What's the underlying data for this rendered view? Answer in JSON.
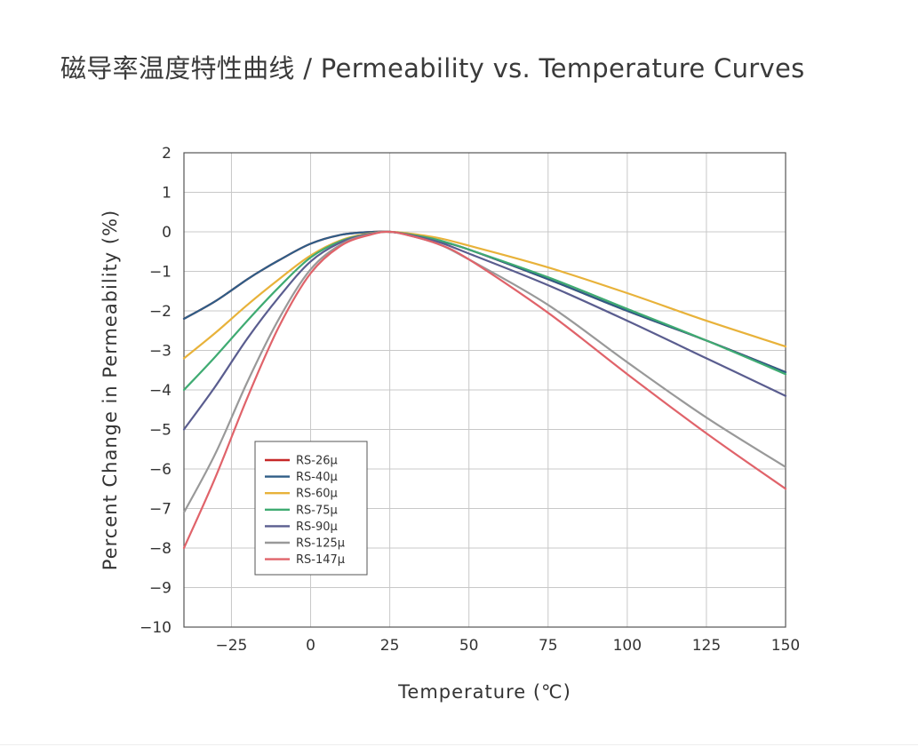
{
  "page": {
    "title": "磁导率温度特性曲线 / Permeability vs. Temperature Curves"
  },
  "chart_data": {
    "type": "line",
    "title": "磁导率温度特性曲线 / Permeability vs. Temperature Curves",
    "xlabel": "Temperature (℃)",
    "ylabel": "Percent Change in Permeability (%)",
    "xlim": [
      -40,
      150
    ],
    "ylim": [
      -10,
      2
    ],
    "xticks": [
      -25,
      0,
      25,
      50,
      75,
      100,
      125,
      150
    ],
    "yticks": [
      2,
      1,
      0,
      -1,
      -2,
      -3,
      -4,
      -5,
      -6,
      -7,
      -8,
      -9,
      -10
    ],
    "xtick_labels": [
      "−25",
      "0",
      "25",
      "50",
      "75",
      "100",
      "125",
      "150"
    ],
    "ytick_labels": [
      "2",
      "1",
      "0",
      "−1",
      "−2",
      "−3",
      "−4",
      "−5",
      "−6",
      "−7",
      "−8",
      "−9",
      "−10"
    ],
    "grid": true,
    "legend_position": "inside-lower-left",
    "series": [
      {
        "name": "RS-26μ",
        "color": "#c62828",
        "x": [
          -40,
          -30,
          -20,
          -15,
          -10,
          0,
          10,
          20,
          25,
          30,
          40,
          50,
          75,
          100,
          125,
          150
        ],
        "y": [
          -2.2,
          -1.75,
          -1.2,
          -0.95,
          -0.72,
          -0.3,
          -0.07,
          0,
          0,
          -0.05,
          -0.22,
          -0.45,
          -1.2,
          -2.0,
          -2.75,
          -3.55
        ]
      },
      {
        "name": "RS-40μ",
        "color": "#2f5d86",
        "x": [
          -40,
          -30,
          -20,
          -15,
          -10,
          0,
          10,
          20,
          25,
          30,
          40,
          50,
          75,
          100,
          125,
          150
        ],
        "y": [
          -2.2,
          -1.75,
          -1.2,
          -0.95,
          -0.72,
          -0.3,
          -0.07,
          0,
          0,
          -0.05,
          -0.22,
          -0.45,
          -1.2,
          -2.0,
          -2.75,
          -3.55
        ]
      },
      {
        "name": "RS-60μ",
        "color": "#e8b23a",
        "x": [
          -40,
          -30,
          -20,
          -10,
          0,
          10,
          20,
          25,
          30,
          40,
          50,
          75,
          100,
          125,
          150
        ],
        "y": [
          -3.2,
          -2.55,
          -1.85,
          -1.2,
          -0.6,
          -0.2,
          -0.02,
          0,
          -0.03,
          -0.15,
          -0.35,
          -0.9,
          -1.55,
          -2.25,
          -2.9
        ]
      },
      {
        "name": "RS-75μ",
        "color": "#3fab72",
        "x": [
          -40,
          -30,
          -20,
          -10,
          0,
          10,
          20,
          25,
          30,
          40,
          50,
          75,
          100,
          125,
          150
        ],
        "y": [
          -4.0,
          -3.15,
          -2.25,
          -1.4,
          -0.65,
          -0.22,
          -0.03,
          0,
          -0.05,
          -0.2,
          -0.45,
          -1.15,
          -1.95,
          -2.75,
          -3.6
        ]
      },
      {
        "name": "RS-90μ",
        "color": "#5a5d8f",
        "x": [
          -40,
          -30,
          -20,
          -10,
          0,
          10,
          20,
          25,
          30,
          40,
          50,
          75,
          100,
          125,
          150
        ],
        "y": [
          -5.0,
          -3.9,
          -2.7,
          -1.65,
          -0.75,
          -0.25,
          -0.03,
          0,
          -0.06,
          -0.25,
          -0.55,
          -1.35,
          -2.25,
          -3.2,
          -4.15
        ]
      },
      {
        "name": "RS-125μ",
        "color": "#999999",
        "x": [
          -40,
          -30,
          -20,
          -10,
          0,
          10,
          20,
          25,
          30,
          40,
          50,
          75,
          100,
          125,
          150
        ],
        "y": [
          -7.1,
          -5.6,
          -3.8,
          -2.2,
          -0.95,
          -0.3,
          -0.04,
          0,
          -0.07,
          -0.3,
          -0.7,
          -1.85,
          -3.3,
          -4.7,
          -5.95
        ]
      },
      {
        "name": "RS-147μ",
        "color": "#e0636a",
        "x": [
          -40,
          -30,
          -20,
          -10,
          0,
          10,
          20,
          25,
          30,
          40,
          50,
          75,
          100,
          125,
          150
        ],
        "y": [
          -8.0,
          -6.2,
          -4.2,
          -2.4,
          -1.05,
          -0.33,
          -0.05,
          0,
          -0.07,
          -0.3,
          -0.7,
          -2.05,
          -3.6,
          -5.1,
          -6.5
        ]
      }
    ]
  }
}
